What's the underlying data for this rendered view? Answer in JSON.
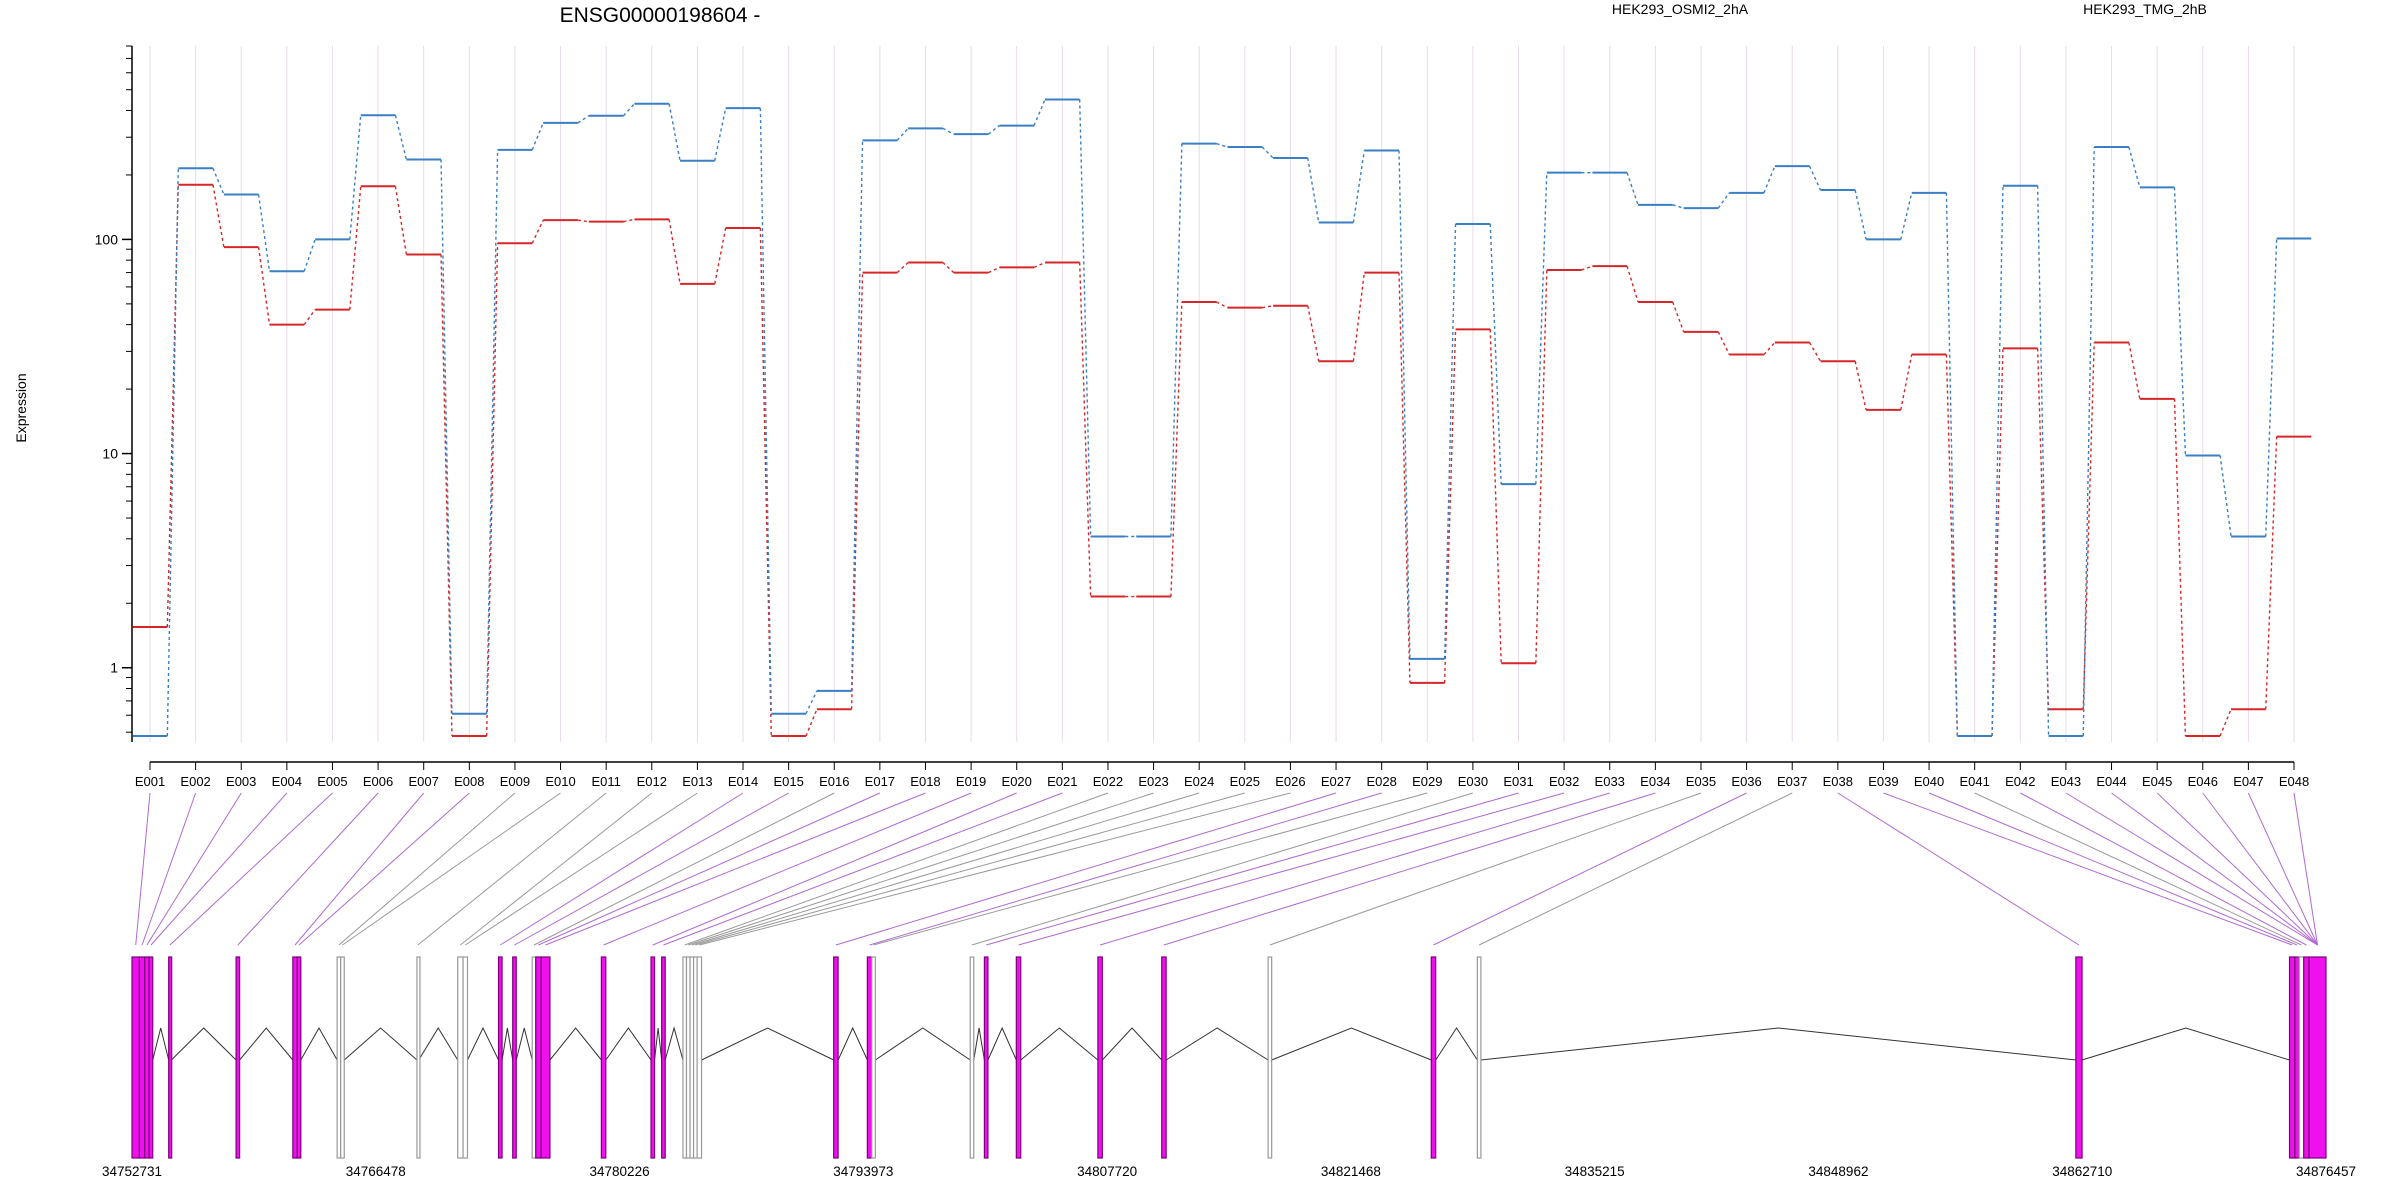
{
  "chart_data": {
    "type": "line",
    "title": "ENSG00000198604 -",
    "ylabel": "Expression",
    "xlabel": "",
    "yscale": "log",
    "ylim": [
      0.45,
      800
    ],
    "yticks": [
      1,
      10,
      100
    ],
    "ytick_labels": [
      "1",
      "10",
      "100"
    ],
    "grid": "vertical",
    "legend_position": "top-right",
    "colors": {
      "series_a": "#d62728",
      "series_b": "#3a7fc4",
      "exon_usage": "#ee11ee",
      "exon_normal": "#999999",
      "mapping_line_usage": "#b06ad0",
      "mapping_line_normal": "#999999",
      "grid": "#e9d9e9"
    },
    "categories": [
      "E001",
      "E002",
      "E003",
      "E004",
      "E005",
      "E006",
      "E007",
      "E008",
      "E009",
      "E010",
      "E011",
      "E012",
      "E013",
      "E014",
      "E015",
      "E016",
      "E017",
      "E018",
      "E019",
      "E020",
      "E021",
      "E022",
      "E023",
      "E024",
      "E025",
      "E026",
      "E027",
      "E028",
      "E029",
      "E030",
      "E031",
      "E032",
      "E033",
      "E034",
      "E035",
      "E036",
      "E037",
      "E038",
      "E039",
      "E040",
      "E041",
      "E042",
      "E043",
      "E044",
      "E045",
      "E046",
      "E047",
      "E048"
    ],
    "series": [
      {
        "name": "HEK293_OSMI2_2hA",
        "values": [
          1.55,
          180,
          92,
          40,
          47,
          177,
          85,
          0.48,
          96,
          123,
          121,
          124,
          62,
          113,
          0.48,
          0.64,
          70,
          78,
          70,
          74,
          78,
          2.15,
          2.15,
          51,
          48,
          49,
          27,
          70,
          0.85,
          38,
          1.05,
          72,
          75,
          51,
          37,
          29,
          33,
          27,
          16,
          29,
          0.48,
          31,
          0.64,
          33,
          18,
          0.48,
          0.64,
          12
        ]
      },
      {
        "name": "HEK293_TMG_2hB",
        "values": [
          0.48,
          215,
          162,
          71,
          100,
          380,
          236,
          0.61,
          262,
          350,
          378,
          430,
          233,
          410,
          0.61,
          0.78,
          290,
          330,
          310,
          340,
          450,
          4.1,
          4.1,
          280,
          270,
          240,
          120,
          260,
          1.1,
          118,
          7.2,
          205,
          205,
          145,
          140,
          165,
          220,
          170,
          100,
          165,
          0.48,
          178,
          0.48,
          270,
          175,
          9.8,
          4.1,
          101
        ]
      }
    ],
    "gene_model": {
      "coordinate_ticks": [
        "34752731",
        "34766478",
        "34780226",
        "34793973",
        "34807720",
        "34821468",
        "34835215",
        "34848962",
        "34862710",
        "34876457"
      ],
      "coordinate_values": [
        34752731,
        34766478,
        34780226,
        34793973,
        34807720,
        34821468,
        34835215,
        34848962,
        34862710,
        34876457
      ],
      "exons": [
        {
          "id": "E001",
          "start": 34752731,
          "end": 34753150,
          "usage": true
        },
        {
          "id": "E002",
          "start": 34753150,
          "end": 34753450,
          "usage": true
        },
        {
          "id": "E003",
          "start": 34753450,
          "end": 34753700,
          "usage": true
        },
        {
          "id": "E004",
          "start": 34753700,
          "end": 34753900,
          "usage": true
        },
        {
          "id": "E005",
          "start": 34754800,
          "end": 34754950,
          "usage": true
        },
        {
          "id": "E006",
          "start": 34758600,
          "end": 34758800,
          "usage": true
        },
        {
          "id": "E007",
          "start": 34761800,
          "end": 34762050,
          "usage": true
        },
        {
          "id": "E008",
          "start": 34762050,
          "end": 34762250,
          "usage": true
        },
        {
          "id": "E009",
          "start": 34764300,
          "end": 34764500,
          "usage": false
        },
        {
          "id": "E010",
          "start": 34764500,
          "end": 34764700,
          "usage": false
        },
        {
          "id": "E011",
          "start": 34768800,
          "end": 34768900,
          "usage": false
        },
        {
          "id": "E012",
          "start": 34771100,
          "end": 34771400,
          "usage": false
        },
        {
          "id": "E013",
          "start": 34771400,
          "end": 34771650,
          "usage": false
        },
        {
          "id": "E014",
          "start": 34773400,
          "end": 34773600,
          "usage": true
        },
        {
          "id": "E015",
          "start": 34774200,
          "end": 34774400,
          "usage": true
        },
        {
          "id": "E016",
          "start": 34775300,
          "end": 34775500,
          "usage": false
        },
        {
          "id": "E017",
          "start": 34775500,
          "end": 34775800,
          "usage": true
        },
        {
          "id": "E018",
          "start": 34775800,
          "end": 34776300,
          "usage": true
        },
        {
          "id": "E019",
          "start": 34779200,
          "end": 34779450,
          "usage": true
        },
        {
          "id": "E020",
          "start": 34782000,
          "end": 34782200,
          "usage": true
        },
        {
          "id": "E021",
          "start": 34782600,
          "end": 34782800,
          "usage": true
        },
        {
          "id": "E022",
          "start": 34783800,
          "end": 34784000,
          "usage": false
        },
        {
          "id": "E023",
          "start": 34784000,
          "end": 34784200,
          "usage": false
        },
        {
          "id": "E024",
          "start": 34784200,
          "end": 34784400,
          "usage": false
        },
        {
          "id": "E025",
          "start": 34784400,
          "end": 34784600,
          "usage": false
        },
        {
          "id": "E025b",
          "start": 34784600,
          "end": 34784850,
          "usage": false
        },
        {
          "id": "E026",
          "start": 34792300,
          "end": 34792550,
          "usage": true
        },
        {
          "id": "E027",
          "start": 34794200,
          "end": 34794450,
          "usage": true
        },
        {
          "id": "E028",
          "start": 34794450,
          "end": 34794650,
          "usage": false
        },
        {
          "id": "E029",
          "start": 34800000,
          "end": 34800200,
          "usage": false
        },
        {
          "id": "E030",
          "start": 34800800,
          "end": 34801000,
          "usage": true
        },
        {
          "id": "E031",
          "start": 34802600,
          "end": 34802850,
          "usage": true
        },
        {
          "id": "E032",
          "start": 34807200,
          "end": 34807450,
          "usage": true
        },
        {
          "id": "E033",
          "start": 34810800,
          "end": 34811050,
          "usage": true
        },
        {
          "id": "E034",
          "start": 34816800,
          "end": 34817000,
          "usage": false
        },
        {
          "id": "E035",
          "start": 34826000,
          "end": 34826250,
          "usage": true
        },
        {
          "id": "E036",
          "start": 34828600,
          "end": 34828800,
          "usage": false
        },
        {
          "id": "E037",
          "start": 34862350,
          "end": 34862700,
          "usage": true
        },
        {
          "id": "E038",
          "start": 34874400,
          "end": 34874700,
          "usage": true
        },
        {
          "id": "E039",
          "start": 34874700,
          "end": 34874950,
          "usage": true
        },
        {
          "id": "E040",
          "start": 34874950,
          "end": 34875200,
          "usage": false
        },
        {
          "id": "E041",
          "start": 34875200,
          "end": 34875500,
          "usage": true
        },
        {
          "id": "E042",
          "start": 34875500,
          "end": 34876457,
          "usage": true
        }
      ]
    }
  }
}
